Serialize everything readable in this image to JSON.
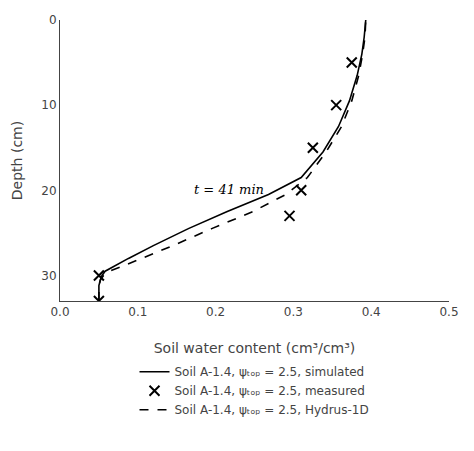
{
  "chart_data": {
    "type": "line",
    "xlabel": "Soil water content (cm³/cm³)",
    "ylabel": "Depth (cm)",
    "xlim": [
      0.0,
      0.5
    ],
    "ylim": [
      33,
      0
    ],
    "xticks": [
      {
        "value": 0.0,
        "label": "0.0"
      },
      0.1,
      0.2,
      0.3,
      0.4,
      0.5
    ],
    "yticks": [
      0,
      10,
      20,
      30
    ],
    "grid": false,
    "legend": "bottom",
    "series": [
      {
        "name": "Soil A-1.4, ψₜₒₚ = 2.5, simulated",
        "type": "line",
        "color": "#000000",
        "line_style": "solid",
        "x": [
          0.05,
          0.05,
          0.052,
          0.054,
          0.058,
          0.068,
          0.088,
          0.12,
          0.165,
          0.215,
          0.268,
          0.31,
          0.338,
          0.358,
          0.372,
          0.382,
          0.388,
          0.391,
          0.393
        ],
        "values": [
          33,
          31.2,
          30.5,
          30.0,
          29.5,
          29.0,
          28.0,
          26.5,
          24.5,
          22.5,
          20.5,
          18.5,
          15.5,
          12.5,
          9.5,
          6.5,
          4.0,
          2.0,
          0.0
        ]
      },
      {
        "name": "Soil A-1.4, ψₜₒₚ = 2.5, measured",
        "type": "scatter",
        "color": "#000000",
        "marker": "x",
        "x": [
          0.05,
          0.05,
          0.295,
          0.31,
          0.325,
          0.355,
          0.375
        ],
        "values": [
          33,
          30,
          23,
          20,
          15,
          10,
          5
        ]
      },
      {
        "name": "Soil A-1.4, ψₜₒₚ = 2.5, Hydrus-1D",
        "type": "line",
        "color": "#000000",
        "line_style": "dashed",
        "x": [
          0.05,
          0.05,
          0.052,
          0.056,
          0.063,
          0.078,
          0.105,
          0.145,
          0.195,
          0.248,
          0.29,
          0.318,
          0.342,
          0.362,
          0.375,
          0.384,
          0.389,
          0.392,
          0.393
        ],
        "values": [
          33,
          31.2,
          30.5,
          30.0,
          29.5,
          29.0,
          28.0,
          26.5,
          24.5,
          22.5,
          20.5,
          18.5,
          15.5,
          12.5,
          9.5,
          6.5,
          4.0,
          2.0,
          0.0
        ]
      }
    ],
    "annotations": [
      {
        "text": "t = 41 min",
        "x": 0.17,
        "y": 21
      }
    ]
  }
}
